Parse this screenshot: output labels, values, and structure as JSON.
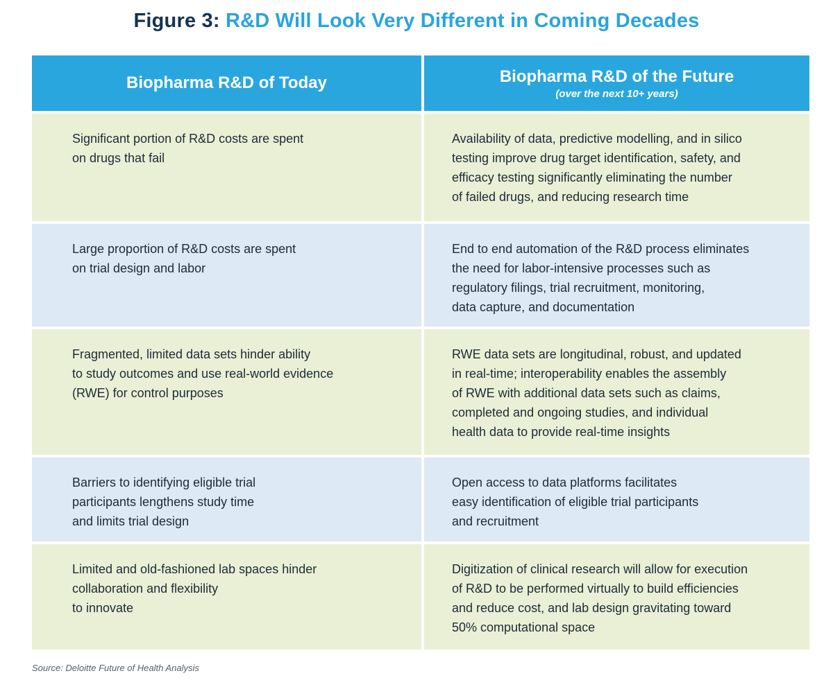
{
  "title": {
    "figure_label": "Figure 3:",
    "text": "R&D Will Look Very Different in Coming Decades"
  },
  "header": {
    "today": "Biopharma R&D of Today",
    "future": "Biopharma R&D of the Future",
    "future_sub": "(over the next 10+ years)"
  },
  "rows": [
    {
      "today": [
        "Significant portion of R&D costs are spent",
        "on drugs that fail"
      ],
      "future": [
        "Availability of data, predictive modelling, and in silico",
        "testing improve drug target identification, safety, and",
        "efficacy testing significantly eliminating the number",
        "of failed drugs, and reducing research time"
      ]
    },
    {
      "today": [
        "Large proportion of R&D costs are spent",
        "on trial design and labor"
      ],
      "future": [
        "End to end automation of the R&D process eliminates",
        "the need for labor-intensive processes such as",
        "regulatory filings, trial recruitment, monitoring,",
        "data capture, and documentation"
      ]
    },
    {
      "today": [
        "Fragmented, limited data sets hinder ability",
        "to study outcomes and use real-world evidence",
        "(RWE) for control purposes"
      ],
      "future": [
        "RWE data sets are longitudinal, robust, and updated",
        "in real-time; interoperability enables the assembly",
        "of RWE with additional data sets such as claims,",
        "completed and ongoing studies, and individual",
        "health data to provide real-time insights"
      ]
    },
    {
      "today": [
        "Barriers to identifying eligible trial",
        "participants lengthens study time",
        "and limits trial design"
      ],
      "future": [
        "Open access to data platforms facilitates",
        "easy identification of eligible trial participants",
        "and recruitment"
      ]
    },
    {
      "today": [
        "Limited and old-fashioned lab spaces hinder",
        "collaboration and flexibility",
        "to innovate"
      ],
      "future": [
        "Digitization of clinical research will allow for execution",
        "of R&D to be performed virtually to build efficiencies",
        "and reduce cost, and lab design gravitating toward",
        "50% computational space"
      ]
    }
  ],
  "source": "Source: Deloitte Future of Health Analysis"
}
